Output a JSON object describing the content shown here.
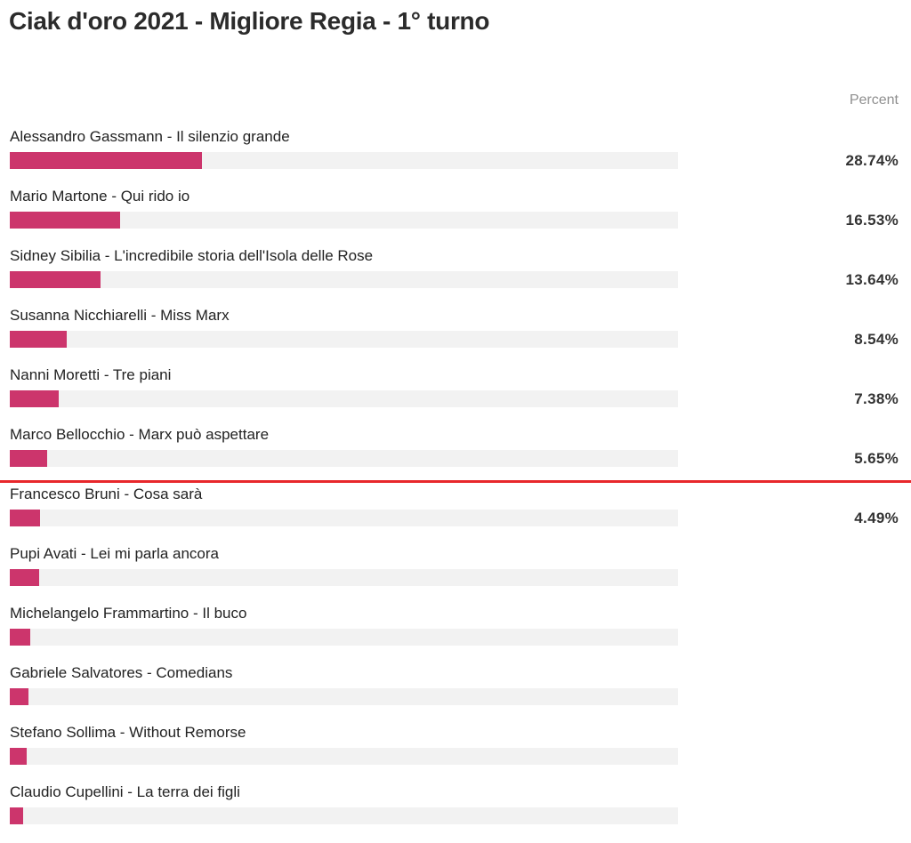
{
  "chart_data": {
    "type": "bar",
    "orientation": "horizontal",
    "title": "Ciak d'oro 2021 - Migliore Regia - 1° turno",
    "value_header": "Percent",
    "xlim": [
      0,
      100
    ],
    "colors": {
      "bar": "#cc356c",
      "track": "#f2f2f2",
      "cutoff_line": "#e8272b"
    },
    "cutoff_after_index": 5,
    "items": [
      {
        "label": "Alessandro Gassmann - Il silenzio grande",
        "value": 28.74,
        "value_label": "28.74%"
      },
      {
        "label": "Mario Martone - Qui rido io",
        "value": 16.53,
        "value_label": "16.53%"
      },
      {
        "label": "Sidney Sibilia - L'incredibile storia dell'Isola delle Rose",
        "value": 13.64,
        "value_label": "13.64%"
      },
      {
        "label": "Susanna Nicchiarelli - Miss Marx",
        "value": 8.54,
        "value_label": "8.54%"
      },
      {
        "label": "Nanni Moretti - Tre piani",
        "value": 7.38,
        "value_label": "7.38%"
      },
      {
        "label": "Marco Bellocchio - Marx può aspettare",
        "value": 5.65,
        "value_label": "5.65%"
      },
      {
        "label": "Francesco Bruni - Cosa sarà",
        "value": 4.49,
        "value_label": "4.49%"
      },
      {
        "label": "Pupi Avati - Lei mi parla ancora",
        "value": 4.4,
        "value_label": ""
      },
      {
        "label": "Michelangelo Frammartino - Il buco",
        "value": 3.0,
        "value_label": ""
      },
      {
        "label": "Gabriele Salvatores - Comedians",
        "value": 2.8,
        "value_label": ""
      },
      {
        "label": "Stefano Sollima - Without Remorse",
        "value": 2.5,
        "value_label": ""
      },
      {
        "label": "Claudio Cupellini - La terra dei figli",
        "value": 2.0,
        "value_label": ""
      }
    ]
  }
}
